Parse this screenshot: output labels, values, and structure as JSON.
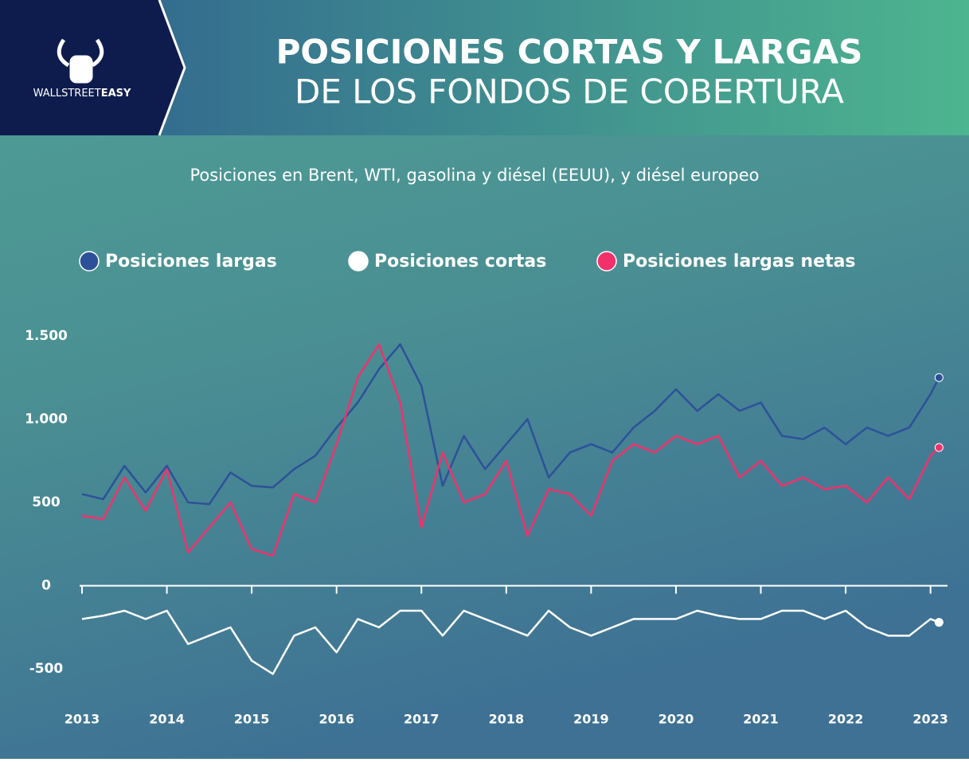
{
  "brand": {
    "light": "WALLSTREET",
    "bold": "EASY"
  },
  "chart_data": {
    "type": "line",
    "title": "POSICIONES CORTAS Y LARGAS",
    "title_line2": "DE LOS FONDOS DE COBERTURA",
    "subtitle": "Posiciones en Brent, WTI, gasolina y diésel (EEUU), y diésel europeo",
    "x": [
      2013,
      2013.25,
      2013.5,
      2013.75,
      2014,
      2014.25,
      2014.5,
      2014.75,
      2015,
      2015.25,
      2015.5,
      2015.75,
      2016,
      2016.25,
      2016.5,
      2016.75,
      2017,
      2017.25,
      2017.5,
      2017.75,
      2018,
      2018.25,
      2018.5,
      2018.75,
      2019,
      2019.25,
      2019.5,
      2019.75,
      2020,
      2020.25,
      2020.5,
      2020.75,
      2021,
      2021.25,
      2021.5,
      2021.75,
      2022,
      2022.25,
      2022.5,
      2022.75,
      2023,
      2023.1
    ],
    "series": [
      {
        "name": "Posiciones largas",
        "color": "#2d5199",
        "values": [
          550,
          520,
          720,
          560,
          720,
          500,
          490,
          680,
          600,
          590,
          700,
          780,
          950,
          1100,
          1300,
          1450,
          1200,
          600,
          900,
          700,
          850,
          1000,
          650,
          800,
          850,
          800,
          950,
          1050,
          1180,
          1050,
          1150,
          1050,
          1100,
          900,
          880,
          950,
          850,
          950,
          900,
          950,
          1150,
          1250
        ]
      },
      {
        "name": "Posiciones cortas",
        "color": "#ffffff",
        "values": [
          -200,
          -180,
          -150,
          -200,
          -150,
          -350,
          -300,
          -250,
          -450,
          -530,
          -300,
          -250,
          -400,
          -200,
          -250,
          -150,
          -150,
          -300,
          -150,
          -200,
          -250,
          -300,
          -150,
          -250,
          -300,
          -250,
          -200,
          -200,
          -200,
          -150,
          -180,
          -200,
          -200,
          -150,
          -150,
          -200,
          -150,
          -250,
          -300,
          -300,
          -200,
          -220
        ]
      },
      {
        "name": "Posiciones largas netas",
        "color": "#f2316b",
        "values": [
          420,
          400,
          650,
          450,
          700,
          200,
          350,
          500,
          220,
          180,
          550,
          500,
          850,
          1250,
          1450,
          1100,
          350,
          800,
          500,
          550,
          750,
          300,
          580,
          550,
          420,
          750,
          850,
          800,
          900,
          850,
          900,
          650,
          750,
          600,
          650,
          580,
          600,
          500,
          650,
          520,
          780,
          830
        ]
      }
    ],
    "xlim": [
      2013,
      2023.2
    ],
    "xticks": [
      2013,
      2014,
      2015,
      2016,
      2017,
      2018,
      2019,
      2020,
      2021,
      2022,
      2023
    ],
    "ylim": [
      -700,
      1600
    ],
    "yticks": [
      {
        "value": -500,
        "label": "-500"
      },
      0,
      500,
      {
        "value": 1000,
        "label": "1.000"
      },
      {
        "value": 1500,
        "label": "1.500"
      }
    ]
  }
}
